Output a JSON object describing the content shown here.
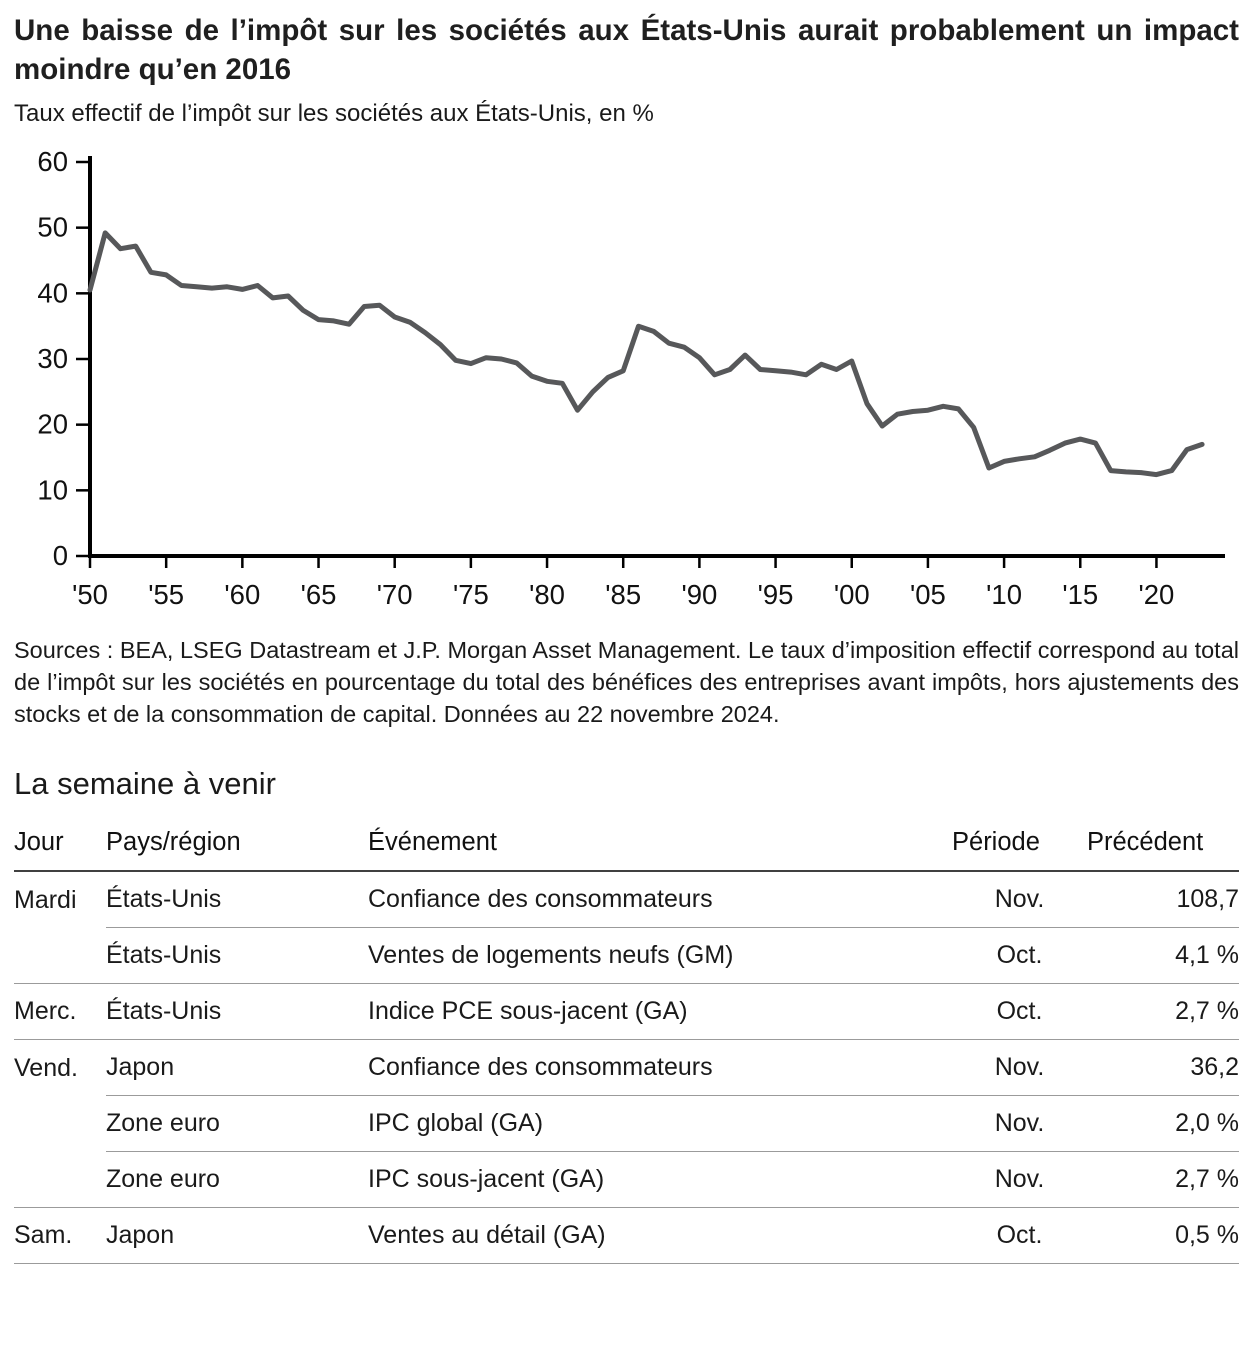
{
  "header": {
    "title": "Une baisse de l’impôt sur les sociétés aux États-Unis aurait probablement un impact moindre qu’en 2016",
    "subtitle": "Taux effectif de l’impôt sur les sociétés aux États-Unis, en %"
  },
  "chart_data": {
    "type": "line",
    "title": "Taux effectif de l’impôt sur les sociétés aux États-Unis, en %",
    "ylabel": "",
    "xlabel": "",
    "ylim": [
      0,
      60
    ],
    "yticks": [
      0,
      10,
      20,
      30,
      40,
      50,
      60
    ],
    "x_range": [
      1950,
      2024.5
    ],
    "xtick_years": [
      1950,
      1955,
      1960,
      1965,
      1970,
      1975,
      1980,
      1985,
      1990,
      1995,
      2000,
      2005,
      2010,
      2015,
      2020
    ],
    "xtick_labels": [
      "'50",
      "'55",
      "'60",
      "'65",
      "'70",
      "'75",
      "'80",
      "'85",
      "'90",
      "'95",
      "'00",
      "'05",
      "'10",
      "'15",
      "'20"
    ],
    "grid": false,
    "legend": "none",
    "line_color": "#57585a",
    "axis_color": "#000000",
    "x": [
      1950,
      1951,
      1952,
      1953,
      1954,
      1955,
      1956,
      1957,
      1958,
      1959,
      1960,
      1961,
      1962,
      1963,
      1964,
      1965,
      1966,
      1967,
      1968,
      1969,
      1970,
      1971,
      1972,
      1973,
      1974,
      1975,
      1976,
      1977,
      1978,
      1979,
      1980,
      1981,
      1982,
      1983,
      1984,
      1985,
      1986,
      1987,
      1988,
      1989,
      1990,
      1991,
      1992,
      1993,
      1994,
      1995,
      1996,
      1997,
      1998,
      1999,
      2000,
      2001,
      2002,
      2003,
      2004,
      2005,
      2006,
      2007,
      2008,
      2009,
      2010,
      2011,
      2012,
      2013,
      2014,
      2015,
      2016,
      2017,
      2018,
      2019,
      2020,
      2021,
      2022,
      2023
    ],
    "values": [
      40.5,
      49.2,
      46.8,
      47.2,
      43.2,
      42.8,
      41.2,
      41.0,
      40.8,
      41.0,
      40.6,
      41.2,
      39.3,
      39.6,
      37.4,
      36.0,
      35.8,
      35.3,
      38.0,
      38.2,
      36.4,
      35.6,
      34.0,
      32.2,
      29.8,
      29.3,
      30.2,
      30.0,
      29.4,
      27.4,
      26.6,
      26.3,
      22.2,
      25.0,
      27.2,
      28.2,
      35.0,
      34.2,
      32.4,
      31.8,
      30.2,
      27.6,
      28.4,
      30.6,
      28.4,
      28.2,
      28.0,
      27.6,
      29.2,
      28.4,
      29.7,
      23.2,
      19.8,
      21.6,
      22.0,
      22.2,
      22.8,
      22.4,
      19.6,
      13.4,
      14.4,
      14.8,
      15.1,
      16.1,
      17.2,
      17.8,
      17.2,
      13.0,
      12.8,
      12.7,
      12.4,
      13.0,
      16.2,
      17.0
    ]
  },
  "source_note": "Sources : BEA, LSEG Datastream et J.P. Morgan Asset Management. Le taux d’imposition effectif correspond au total de l’impôt sur les sociétés en pourcentage du total des bénéfices des entreprises avant impôts, hors ajustements des stocks et de la consommation de capital. Données au 22 novembre 2024.",
  "week_ahead": {
    "heading": "La semaine à venir",
    "columns": [
      "Jour",
      "Pays/région",
      "Événement",
      "Période",
      "Précédent"
    ],
    "rows": [
      {
        "day": "Mardi",
        "region": "États-Unis",
        "event": "Confiance des consommateurs",
        "period": "Nov.",
        "previous": "108,7"
      },
      {
        "day": "",
        "region": "États-Unis",
        "event": "Ventes de logements neufs (GM)",
        "period": "Oct.",
        "previous": "4,1 %"
      },
      {
        "day": "Merc.",
        "region": "États-Unis",
        "event": "Indice PCE sous-jacent (GA)",
        "period": "Oct.",
        "previous": "2,7 %"
      },
      {
        "day": "Vend.",
        "region": "Japon",
        "event": "Confiance des consommateurs",
        "period": "Nov.",
        "previous": "36,2"
      },
      {
        "day": "",
        "region": "Zone euro",
        "event": "IPC global (GA)",
        "period": "Nov.",
        "previous": "2,0 %"
      },
      {
        "day": "",
        "region": "Zone euro",
        "event": "IPC sous-jacent (GA)",
        "period": "Nov.",
        "previous": "2,7 %"
      },
      {
        "day": "Sam.",
        "region": "Japon",
        "event": "Ventes au détail (GA)",
        "period": "Oct.",
        "previous": "0,5 %"
      }
    ]
  }
}
